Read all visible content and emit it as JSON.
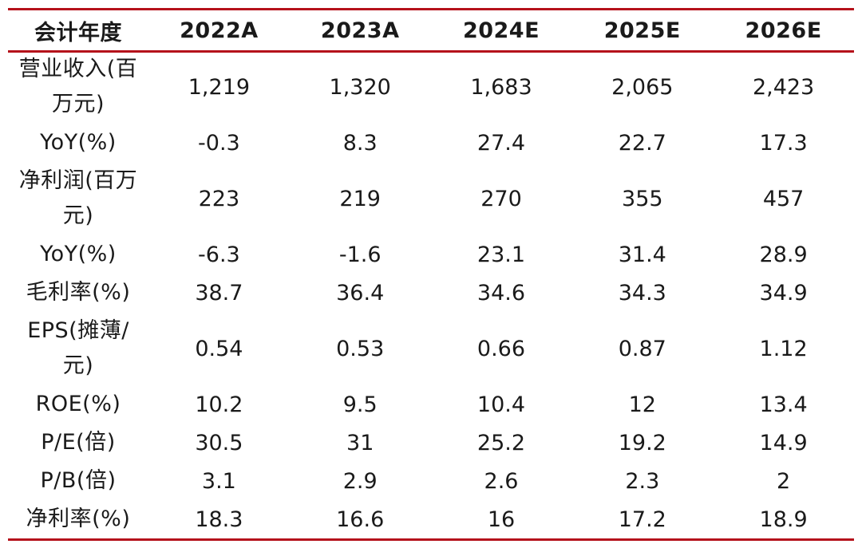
{
  "table": {
    "header": [
      "会计年度",
      "2022A",
      "2023A",
      "2024E",
      "2025E",
      "2026E"
    ],
    "rows": [
      {
        "label": "营业收入(百万元)",
        "lines": 2,
        "values": [
          "1,219",
          "1,320",
          "1,683",
          "2,065",
          "2,423"
        ]
      },
      {
        "label": "YoY(%)",
        "lines": 1,
        "values": [
          "-0.3",
          "8.3",
          "27.4",
          "22.7",
          "17.3"
        ]
      },
      {
        "label": "净利润(百万元)",
        "lines": 2,
        "values": [
          "223",
          "219",
          "270",
          "355",
          "457"
        ]
      },
      {
        "label": "YoY(%)",
        "lines": 1,
        "values": [
          "-6.3",
          "-1.6",
          "23.1",
          "31.4",
          "28.9"
        ]
      },
      {
        "label": "毛利率(%)",
        "lines": 1,
        "values": [
          "38.7",
          "36.4",
          "34.6",
          "34.3",
          "34.9"
        ]
      },
      {
        "label": "EPS(摊薄/元)",
        "lines": 2,
        "values": [
          "0.54",
          "0.53",
          "0.66",
          "0.87",
          "1.12"
        ]
      },
      {
        "label": "ROE(%)",
        "lines": 1,
        "values": [
          "10.2",
          "9.5",
          "10.4",
          "12",
          "13.4"
        ]
      },
      {
        "label": "P/E(倍)",
        "lines": 1,
        "values": [
          "30.5",
          "31",
          "25.2",
          "19.2",
          "14.9"
        ]
      },
      {
        "label": "P/B(倍)",
        "lines": 1,
        "values": [
          "3.1",
          "2.9",
          "2.6",
          "2.3",
          "2"
        ]
      },
      {
        "label": "净利率(%)",
        "lines": 1,
        "values": [
          "18.3",
          "16.6",
          "16",
          "17.2",
          "18.9"
        ]
      }
    ]
  },
  "colors": {
    "rule": "#b5121b",
    "text": "#1a1a1a"
  }
}
